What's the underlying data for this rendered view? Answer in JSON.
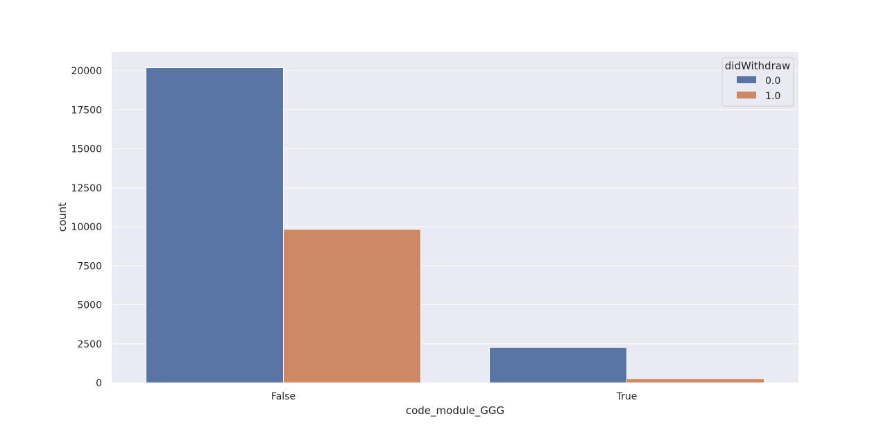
{
  "chart_data": {
    "type": "bar",
    "title": "",
    "xlabel": "code_module_GGG",
    "ylabel": "count",
    "categories": [
      "False",
      "True"
    ],
    "series": [
      {
        "name": "0.0",
        "values": [
          20200,
          2260
        ],
        "color": "#5975a4"
      },
      {
        "name": "1.0",
        "values": [
          9840,
          270
        ],
        "color": "#cc8963"
      }
    ],
    "ylim": [
      0,
      21200
    ],
    "yticks": [
      0,
      2500,
      5000,
      7500,
      10000,
      12500,
      15000,
      17500,
      20000
    ],
    "grid": true,
    "legend": {
      "title": "didWithdraw",
      "placement": "top-right"
    },
    "background": "#eaeaf2"
  }
}
